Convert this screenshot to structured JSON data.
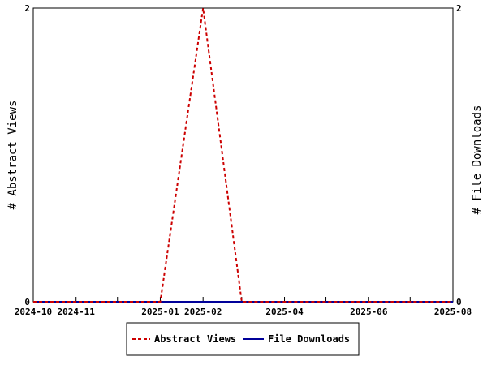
{
  "chart_data": {
    "type": "line",
    "title": "",
    "ylabel_left": "# Abstract Views",
    "ylabel_right": "# File Downloads",
    "xlim": [
      "2024-10-01",
      "2025-08-01"
    ],
    "ylim_left": [
      0,
      2
    ],
    "ylim_right": [
      0,
      2
    ],
    "x_ticks": [
      "2024-10-01",
      "2024-11-01",
      "2024-12-01",
      "2025-01-01",
      "2025-02-01",
      "2025-03-01",
      "2025-04-01",
      "2025-05-01",
      "2025-06-01",
      "2025-07-01",
      "2025-08-01"
    ],
    "x_tick_labels": [
      "2024-10",
      "2024-11",
      "",
      "2025-01",
      "2025-02",
      "",
      "2025-04",
      "",
      "2025-06",
      "",
      "2025-08"
    ],
    "y_ticks_left": [
      0,
      2
    ],
    "y_ticks_right": [
      0,
      2
    ],
    "grid": false,
    "legend_position": "bottom",
    "series": [
      {
        "name": "Abstract Views",
        "axis": "left",
        "color": "#cc0000",
        "style": "dashed",
        "x": [
          "2024-10-01",
          "2025-01-01",
          "2025-02-01",
          "2025-03-01",
          "2025-08-01"
        ],
        "y": [
          0,
          0,
          2,
          0,
          0
        ]
      },
      {
        "name": "File Downloads",
        "axis": "right",
        "color": "#000099",
        "style": "solid",
        "x": [
          "2024-10-01",
          "2025-08-01"
        ],
        "y": [
          0,
          0
        ]
      }
    ]
  }
}
